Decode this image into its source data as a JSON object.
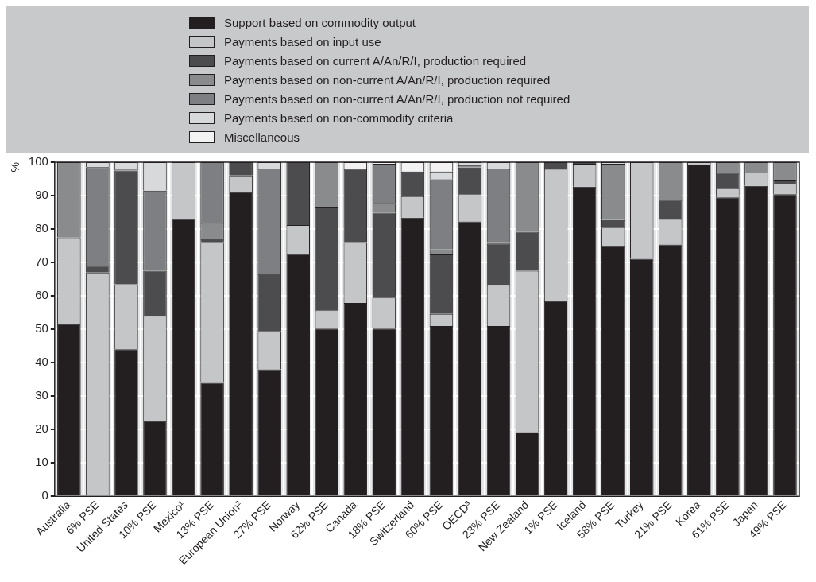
{
  "chart_data": {
    "type": "bar",
    "stacked": true,
    "ylabel": "%",
    "ylim": [
      0,
      100
    ],
    "yticks": [
      0,
      10,
      20,
      30,
      40,
      50,
      60,
      70,
      80,
      90,
      100
    ],
    "grid": true,
    "legend": "top",
    "categories": [
      "Australia",
      "6% PSE",
      "United States",
      "10% PSE",
      "Mexico¹",
      "13% PSE",
      "European Union²",
      "27% PSE",
      "Norway",
      "62% PSE",
      "Canada",
      "18% PSE",
      "Switzerland",
      "60% PSE",
      "OECD³",
      "23% PSE",
      "New Zealand",
      "1% PSE",
      "Iceland",
      "58% PSE",
      "Turkey",
      "21% PSE",
      "Korea",
      "61% PSE",
      "Japan",
      "49% PSE"
    ],
    "series": [
      {
        "name": "Support based on commodity output",
        "color": "#231f20",
        "values": [
          51.5,
          0,
          44,
          22.5,
          83,
          34,
          91,
          38,
          72.5,
          50.2,
          57.9,
          50.2,
          83.4,
          51.0,
          82.3,
          51.0,
          19.2,
          58.4,
          92.7,
          74.9,
          71.1,
          75.4,
          99.3,
          89.5,
          92.9,
          90.4
        ]
      },
      {
        "name": "Payments based on input use",
        "color": "#c5c6c8",
        "values": [
          26,
          67,
          19.5,
          31.5,
          17,
          42,
          5,
          11.5,
          8.7,
          5.5,
          18.2,
          9.3,
          6.4,
          3.6,
          8.1,
          12.3,
          48.3,
          39.6,
          6.8,
          5.5,
          28.9,
          7.6,
          0.7,
          2.7,
          4.0,
          3.2
        ]
      },
      {
        "name": "Payments based on current A/An/R/I, production required",
        "color": "#4c4c4e",
        "values": [
          0,
          2,
          34,
          13.5,
          0,
          1,
          4,
          17,
          18.8,
          31,
          21.9,
          25.4,
          7.4,
          17.8,
          8.0,
          12.4,
          11.7,
          2.0,
          0.5,
          2.3,
          0,
          5.7,
          0,
          4.6,
          0,
          0.9
        ]
      },
      {
        "name": "Payments based on non-current A/An/R/I, production required",
        "color": "#8a8b8d",
        "values": [
          22.5,
          0,
          0.6,
          0,
          0,
          4.8,
          0,
          0,
          0,
          13.3,
          0,
          2.9,
          0,
          1.5,
          0.7,
          0.4,
          20.8,
          0,
          0,
          16.8,
          0,
          11.3,
          0,
          3.2,
          3.1,
          5.5
        ]
      },
      {
        "name": "Payments based on non-current A/An/R/I, production not required",
        "color": "#7e7f82",
        "values": [
          0,
          29.5,
          0,
          24,
          0,
          18.2,
          0,
          31.5,
          0,
          0,
          0,
          11.7,
          0,
          21.0,
          0,
          21.9,
          0,
          0,
          0,
          0,
          0,
          0,
          0,
          0,
          0,
          0
        ]
      },
      {
        "name": "Payments based on non-commodity criteria",
        "color": "#d8d9db",
        "values": [
          0,
          1.5,
          1.9,
          8.5,
          0,
          0,
          0,
          2,
          0,
          0,
          0,
          0,
          0,
          2.3,
          0.9,
          2.0,
          0,
          0,
          0,
          0.5,
          0,
          0,
          0,
          0,
          0,
          0
        ]
      },
      {
        "name": "Miscellaneous",
        "color": "#f2f2f2",
        "values": [
          0,
          0,
          0,
          0,
          0,
          0,
          0,
          0,
          0,
          0,
          2.0,
          0.5,
          2.8,
          2.8,
          0,
          0,
          0,
          0,
          0,
          0,
          0,
          0,
          0,
          0,
          0,
          0
        ]
      }
    ]
  }
}
